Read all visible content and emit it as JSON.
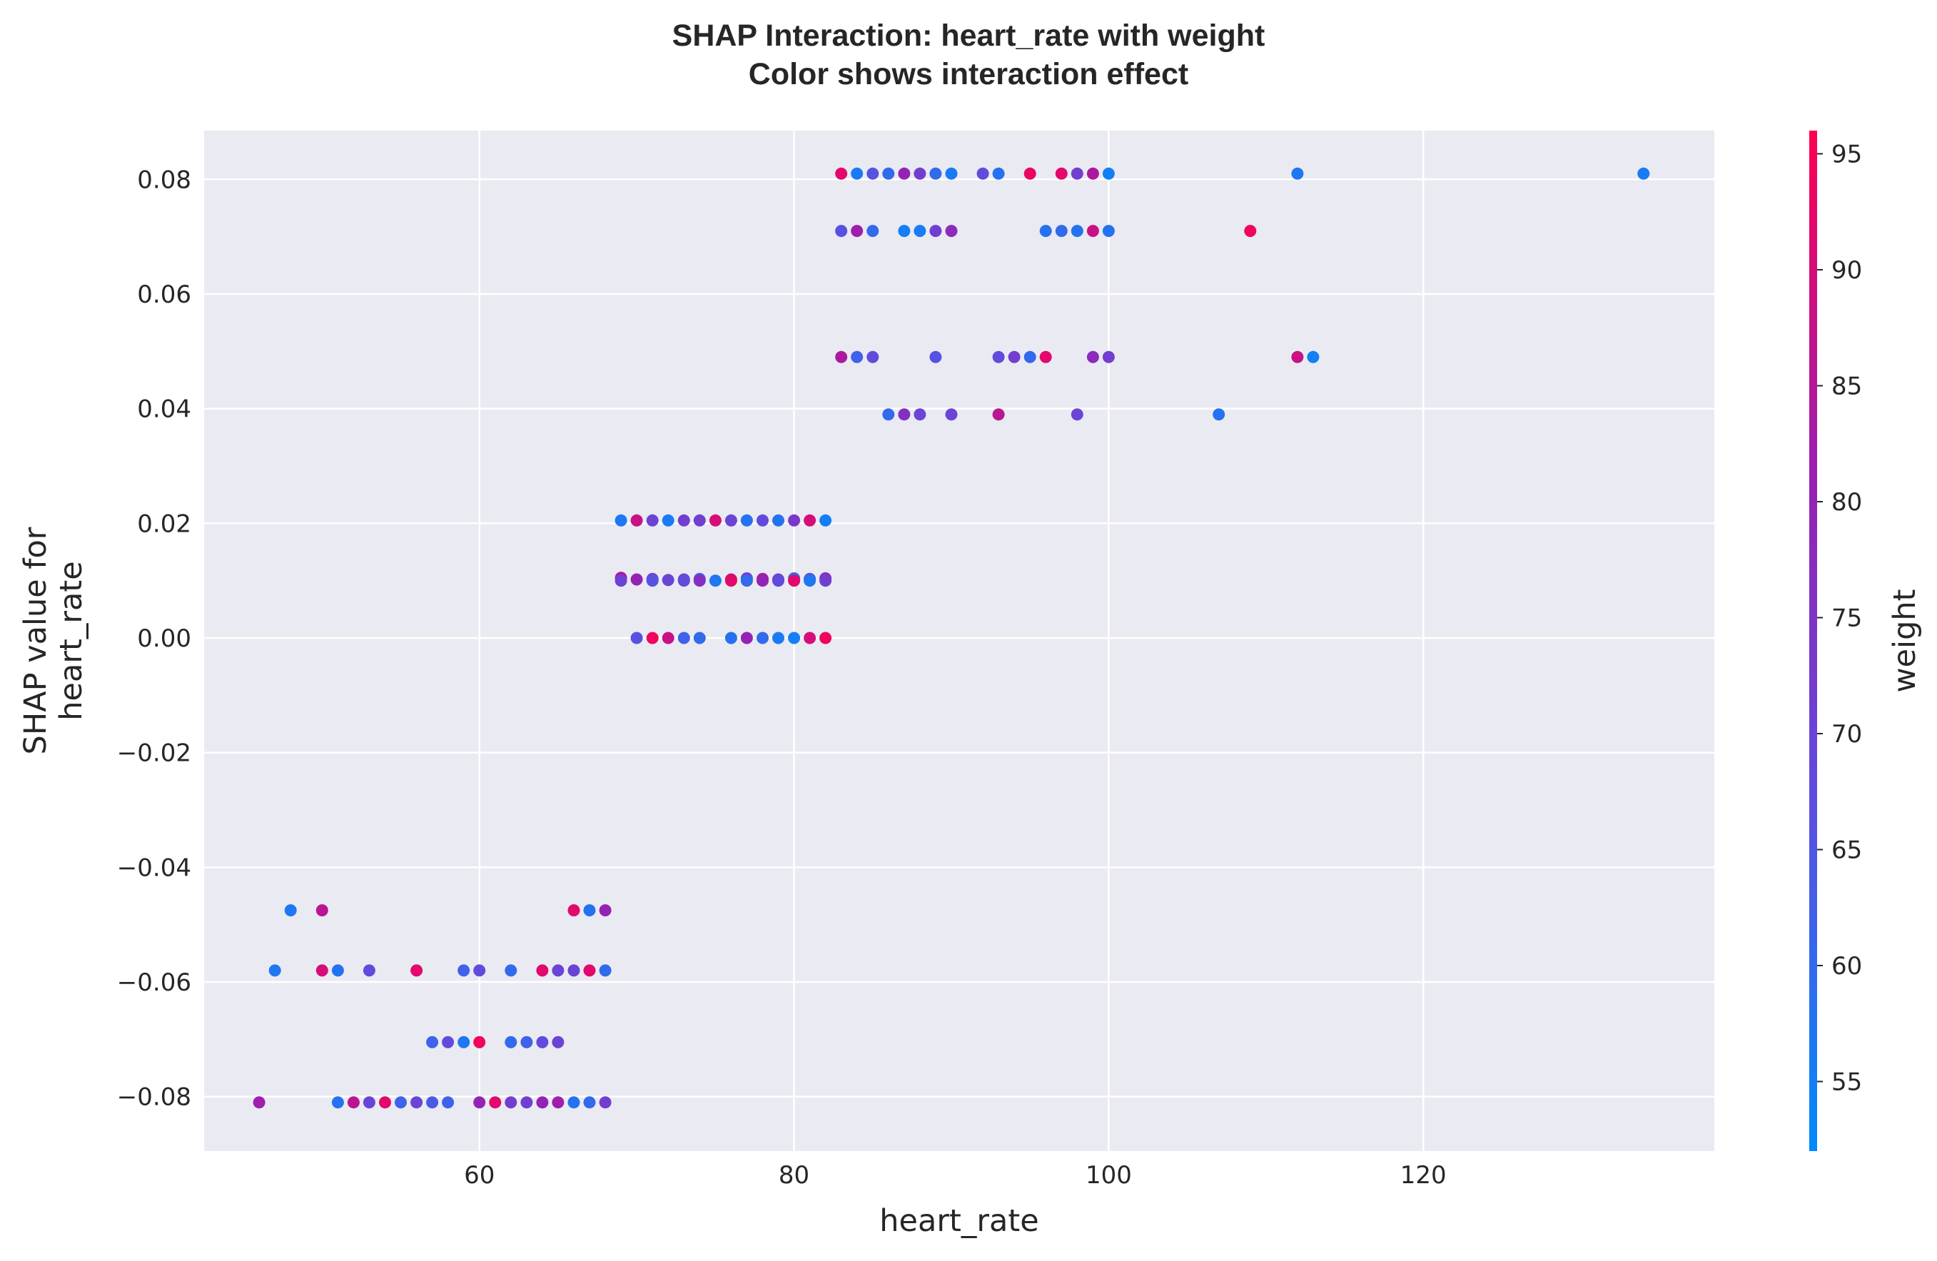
{
  "chart_data": {
    "type": "scatter",
    "title_lines": [
      "SHAP Interaction: heart_rate with weight",
      "Color shows interaction effect"
    ],
    "xlabel": "heart_rate",
    "ylabel_lines": [
      "SHAP value for",
      "heart_rate"
    ],
    "colorbar_label": "weight",
    "xlim": [
      42.5,
      138.5
    ],
    "ylim": [
      -0.0895,
      0.0885
    ],
    "xticks": [
      60,
      80,
      100,
      120
    ],
    "xtick_labels": [
      "60",
      "80",
      "100",
      "120"
    ],
    "yticks": [
      -0.08,
      -0.06,
      -0.04,
      -0.02,
      0.0,
      0.02,
      0.04,
      0.06,
      0.08
    ],
    "ytick_labels": [
      "−0.08",
      "−0.06",
      "−0.04",
      "−0.02",
      "0.00",
      "0.02",
      "0.04",
      "0.06",
      "0.08"
    ],
    "color_range": [
      52,
      96
    ],
    "colorbar_ticks": [
      55,
      60,
      65,
      70,
      75,
      80,
      85,
      90,
      95
    ],
    "colorbar_tick_labels": [
      "55",
      "60",
      "65",
      "70",
      "75",
      "80",
      "85",
      "90",
      "95"
    ],
    "colormap": [
      "#008bfb",
      "#5b4fe0",
      "#9a1fb0",
      "#ff0051"
    ],
    "background": "#eaeaf2",
    "grid": true,
    "points": [
      [
        83,
        0.081,
        92
      ],
      [
        84,
        0.081,
        56
      ],
      [
        85,
        0.081,
        66
      ],
      [
        86,
        0.081,
        60
      ],
      [
        87,
        0.081,
        80
      ],
      [
        88,
        0.081,
        72
      ],
      [
        89,
        0.081,
        60
      ],
      [
        90,
        0.081,
        56
      ],
      [
        92,
        0.081,
        68
      ],
      [
        93,
        0.081,
        58
      ],
      [
        95,
        0.081,
        93
      ],
      [
        97,
        0.081,
        92
      ],
      [
        98,
        0.081,
        72
      ],
      [
        99,
        0.081,
        84
      ],
      [
        100,
        0.081,
        55
      ],
      [
        112,
        0.081,
        57
      ],
      [
        134,
        0.081,
        56
      ],
      [
        83,
        0.071,
        66
      ],
      [
        84,
        0.071,
        82
      ],
      [
        85,
        0.071,
        60
      ],
      [
        87,
        0.071,
        55
      ],
      [
        88,
        0.071,
        56
      ],
      [
        89,
        0.071,
        72
      ],
      [
        90,
        0.071,
        78
      ],
      [
        96,
        0.071,
        58
      ],
      [
        97,
        0.071,
        60
      ],
      [
        98,
        0.071,
        58
      ],
      [
        99,
        0.071,
        88
      ],
      [
        100,
        0.071,
        58
      ],
      [
        109,
        0.071,
        94
      ],
      [
        83,
        0.049,
        84
      ],
      [
        84,
        0.049,
        62
      ],
      [
        85,
        0.049,
        68
      ],
      [
        89,
        0.049,
        66
      ],
      [
        93,
        0.049,
        68
      ],
      [
        94,
        0.049,
        72
      ],
      [
        95,
        0.049,
        60
      ],
      [
        96,
        0.049,
        92
      ],
      [
        99,
        0.049,
        78
      ],
      [
        100,
        0.049,
        72
      ],
      [
        112,
        0.049,
        88
      ],
      [
        113,
        0.049,
        55
      ],
      [
        86,
        0.039,
        60
      ],
      [
        87,
        0.039,
        76
      ],
      [
        88,
        0.039,
        70
      ],
      [
        90,
        0.039,
        70
      ],
      [
        93,
        0.039,
        86
      ],
      [
        98,
        0.039,
        70
      ],
      [
        107,
        0.039,
        58
      ],
      [
        69,
        0.0205,
        57
      ],
      [
        70,
        0.0205,
        88
      ],
      [
        71,
        0.0205,
        70
      ],
      [
        72,
        0.0205,
        56
      ],
      [
        73,
        0.0205,
        72
      ],
      [
        74,
        0.0205,
        72
      ],
      [
        75,
        0.0205,
        90
      ],
      [
        76,
        0.0205,
        70
      ],
      [
        77,
        0.0205,
        58
      ],
      [
        78,
        0.0205,
        68
      ],
      [
        79,
        0.0205,
        58
      ],
      [
        80,
        0.0205,
        74
      ],
      [
        81,
        0.0205,
        90
      ],
      [
        82,
        0.0205,
        55
      ],
      [
        69,
        0.0105,
        84
      ],
      [
        69,
        0.01,
        70
      ],
      [
        70,
        0.0102,
        80
      ],
      [
        71,
        0.0103,
        72
      ],
      [
        71,
        0.01,
        66
      ],
      [
        72,
        0.0101,
        70
      ],
      [
        73,
        0.0102,
        72
      ],
      [
        73,
        0.01,
        68
      ],
      [
        74,
        0.0103,
        64
      ],
      [
        74,
        0.01,
        76
      ],
      [
        75,
        0.01,
        57
      ],
      [
        76,
        0.0102,
        88
      ],
      [
        76,
        0.01,
        92
      ],
      [
        77,
        0.0104,
        70
      ],
      [
        77,
        0.01,
        60
      ],
      [
        78,
        0.0103,
        84
      ],
      [
        78,
        0.01,
        80
      ],
      [
        79,
        0.0102,
        72
      ],
      [
        79,
        0.01,
        68
      ],
      [
        80,
        0.0104,
        60
      ],
      [
        80,
        0.01,
        92
      ],
      [
        81,
        0.0103,
        66
      ],
      [
        81,
        0.01,
        57
      ],
      [
        82,
        0.0104,
        76
      ],
      [
        82,
        0.01,
        72
      ],
      [
        70,
        0.0,
        66
      ],
      [
        71,
        0.0,
        94
      ],
      [
        72,
        0.0,
        88
      ],
      [
        73,
        0.0,
        62
      ],
      [
        74,
        0.0,
        60
      ],
      [
        76,
        0.0,
        58
      ],
      [
        77,
        0.0,
        80
      ],
      [
        78,
        0.0,
        60
      ],
      [
        79,
        0.0,
        56
      ],
      [
        80,
        0.0,
        55
      ],
      [
        81,
        0.0,
        90
      ],
      [
        82,
        0.0,
        94
      ],
      [
        48,
        -0.0475,
        57
      ],
      [
        50,
        -0.0475,
        86
      ],
      [
        66,
        -0.0475,
        92
      ],
      [
        67,
        -0.0475,
        58
      ],
      [
        68,
        -0.0475,
        80
      ],
      [
        47,
        -0.058,
        57
      ],
      [
        50,
        -0.058,
        90
      ],
      [
        51,
        -0.058,
        58
      ],
      [
        53,
        -0.058,
        68
      ],
      [
        56,
        -0.058,
        92
      ],
      [
        59,
        -0.058,
        62
      ],
      [
        60,
        -0.058,
        68
      ],
      [
        62,
        -0.058,
        60
      ],
      [
        64,
        -0.058,
        92
      ],
      [
        65,
        -0.058,
        70
      ],
      [
        66,
        -0.058,
        70
      ],
      [
        67,
        -0.058,
        92
      ],
      [
        68,
        -0.058,
        60
      ],
      [
        57,
        -0.0705,
        62
      ],
      [
        58,
        -0.0705,
        68
      ],
      [
        59,
        -0.0705,
        57
      ],
      [
        60,
        -0.0705,
        94
      ],
      [
        62,
        -0.0705,
        60
      ],
      [
        63,
        -0.0705,
        62
      ],
      [
        64,
        -0.0705,
        68
      ],
      [
        65,
        -0.0705,
        70
      ],
      [
        46,
        -0.081,
        82
      ],
      [
        51,
        -0.081,
        58
      ],
      [
        52,
        -0.081,
        86
      ],
      [
        53,
        -0.081,
        70
      ],
      [
        54,
        -0.081,
        92
      ],
      [
        55,
        -0.081,
        62
      ],
      [
        56,
        -0.081,
        70
      ],
      [
        57,
        -0.081,
        64
      ],
      [
        58,
        -0.081,
        62
      ],
      [
        60,
        -0.081,
        80
      ],
      [
        61,
        -0.081,
        92
      ],
      [
        62,
        -0.081,
        72
      ],
      [
        63,
        -0.081,
        72
      ],
      [
        64,
        -0.081,
        80
      ],
      [
        65,
        -0.081,
        82
      ],
      [
        66,
        -0.081,
        58
      ],
      [
        67,
        -0.081,
        60
      ],
      [
        68,
        -0.081,
        72
      ]
    ]
  }
}
